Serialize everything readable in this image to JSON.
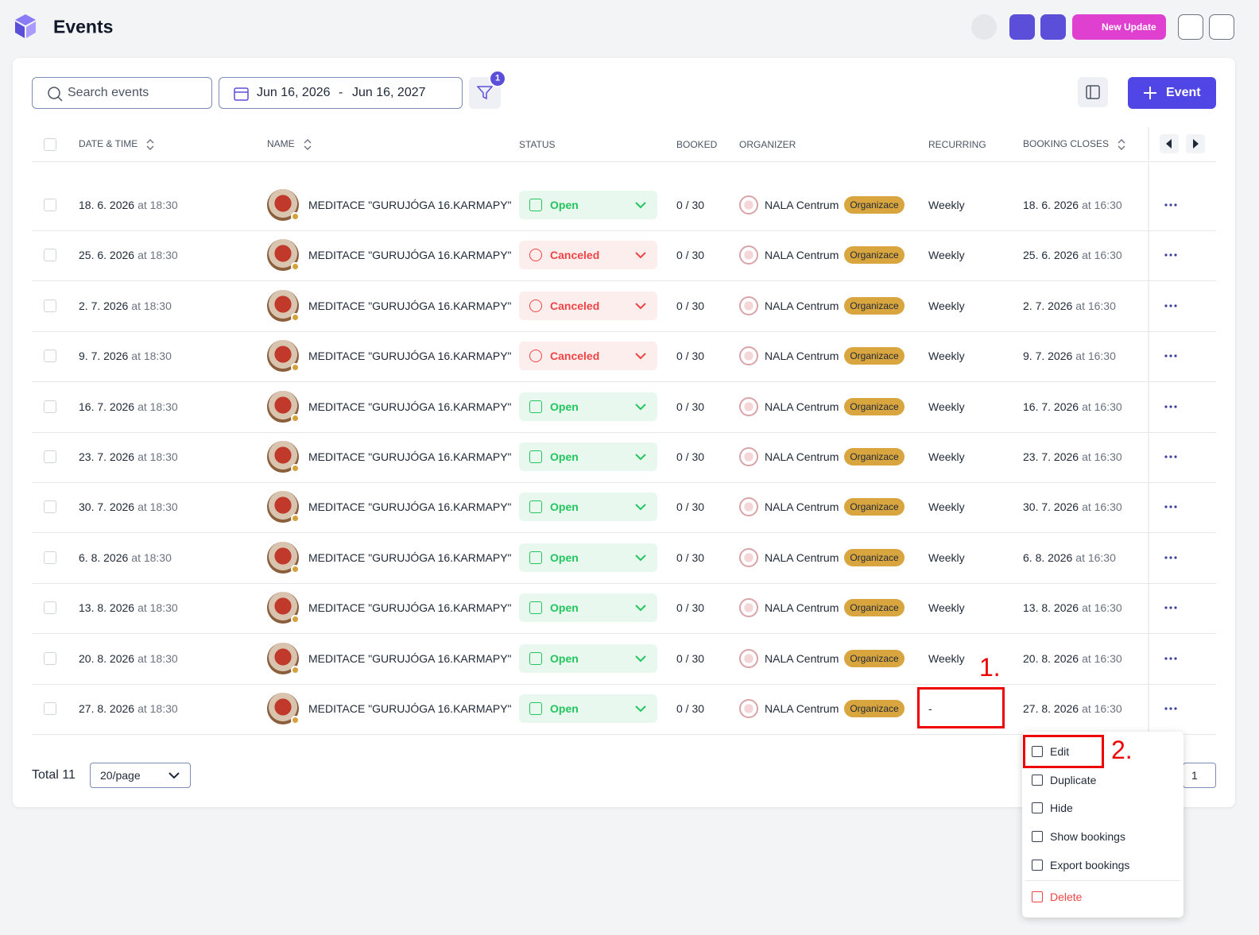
{
  "header": {
    "title": "Events",
    "new_update": "New Update"
  },
  "toolbar": {
    "search_placeholder": "Search events",
    "date_from": "Jun 16, 2026",
    "date_sep": "-",
    "date_to": "Jun 16, 2027",
    "filter_count": "1",
    "add_button": "Event"
  },
  "table": {
    "columns": [
      "DATE & TIME",
      "NAME",
      "STATUS",
      "BOOKED",
      "ORGANIZER",
      "RECURRING",
      "BOOKING CLOSES"
    ],
    "rows": [
      {
        "date": "18. 6. 2026",
        "time": "at 18:30",
        "name": "MEDITACE \"GURUJÓGA 16.KARMAPY\"",
        "status": "Open",
        "tone": "success",
        "booked": "0 / 30",
        "organizer": "NALA Centrum",
        "badge": "Organizace",
        "recurring": "Weekly",
        "closes_date": "18. 6. 2026",
        "closes_time": "at 16:30"
      },
      {
        "date": "25. 6. 2026",
        "time": "at 18:30",
        "name": "MEDITACE \"GURUJÓGA 16.KARMAPY\"",
        "status": "Canceled",
        "tone": "danger",
        "booked": "0 / 30",
        "organizer": "NALA Centrum",
        "badge": "Organizace",
        "recurring": "Weekly",
        "closes_date": "25. 6. 2026",
        "closes_time": "at 16:30"
      },
      {
        "date": "2. 7. 2026",
        "time": "at 18:30",
        "name": "MEDITACE \"GURUJÓGA 16.KARMAPY\"",
        "status": "Canceled",
        "tone": "danger",
        "booked": "0 / 30",
        "organizer": "NALA Centrum",
        "badge": "Organizace",
        "recurring": "Weekly",
        "closes_date": "2. 7. 2026",
        "closes_time": "at 16:30"
      },
      {
        "date": "9. 7. 2026",
        "time": "at 18:30",
        "name": "MEDITACE \"GURUJÓGA 16.KARMAPY\"",
        "status": "Canceled",
        "tone": "danger",
        "booked": "0 / 30",
        "organizer": "NALA Centrum",
        "badge": "Organizace",
        "recurring": "Weekly",
        "closes_date": "9. 7. 2026",
        "closes_time": "at 16:30"
      },
      {
        "date": "16. 7. 2026",
        "time": "at 18:30",
        "name": "MEDITACE \"GURUJÓGA 16.KARMAPY\"",
        "status": "Open",
        "tone": "success",
        "booked": "0 / 30",
        "organizer": "NALA Centrum",
        "badge": "Organizace",
        "recurring": "Weekly",
        "closes_date": "16. 7. 2026",
        "closes_time": "at 16:30"
      },
      {
        "date": "23. 7. 2026",
        "time": "at 18:30",
        "name": "MEDITACE \"GURUJÓGA 16.KARMAPY\"",
        "status": "Open",
        "tone": "success",
        "booked": "0 / 30",
        "organizer": "NALA Centrum",
        "badge": "Organizace",
        "recurring": "Weekly",
        "closes_date": "23. 7. 2026",
        "closes_time": "at 16:30"
      },
      {
        "date": "30. 7. 2026",
        "time": "at 18:30",
        "name": "MEDITACE \"GURUJÓGA 16.KARMAPY\"",
        "status": "Open",
        "tone": "success",
        "booked": "0 / 30",
        "organizer": "NALA Centrum",
        "badge": "Organizace",
        "recurring": "Weekly",
        "closes_date": "30. 7. 2026",
        "closes_time": "at 16:30"
      },
      {
        "date": "6. 8. 2026",
        "time": "at 18:30",
        "name": "MEDITACE \"GURUJÓGA 16.KARMAPY\"",
        "status": "Open",
        "tone": "success",
        "booked": "0 / 30",
        "organizer": "NALA Centrum",
        "badge": "Organizace",
        "recurring": "Weekly",
        "closes_date": "6. 8. 2026",
        "closes_time": "at 16:30"
      },
      {
        "date": "13. 8. 2026",
        "time": "at 18:30",
        "name": "MEDITACE \"GURUJÓGA 16.KARMAPY\"",
        "status": "Open",
        "tone": "success",
        "booked": "0 / 30",
        "organizer": "NALA Centrum",
        "badge": "Organizace",
        "recurring": "Weekly",
        "closes_date": "13. 8. 2026",
        "closes_time": "at 16:30"
      },
      {
        "date": "20. 8. 2026",
        "time": "at 18:30",
        "name": "MEDITACE \"GURUJÓGA 16.KARMAPY\"",
        "status": "Open",
        "tone": "success",
        "booked": "0 / 30",
        "organizer": "NALA Centrum",
        "badge": "Organizace",
        "recurring": "Weekly",
        "closes_date": "20. 8. 2026",
        "closes_time": "at 16:30"
      },
      {
        "date": "27. 8. 2026",
        "time": "at 18:30",
        "name": "MEDITACE \"GURUJÓGA 16.KARMAPY\"",
        "status": "Open",
        "tone": "success",
        "booked": "0 / 30",
        "organizer": "NALA Centrum",
        "badge": "Organizace",
        "recurring": "-",
        "closes_date": "27. 8. 2026",
        "closes_time": "at 16:30"
      }
    ]
  },
  "footer": {
    "total": "Total 11",
    "page_size": "20/page",
    "page": "1"
  },
  "menu": {
    "items": [
      "Edit",
      "Duplicate",
      "Hide",
      "Show bookings",
      "Export bookings",
      "Delete"
    ]
  },
  "annotations": [
    "1.",
    "2."
  ]
}
